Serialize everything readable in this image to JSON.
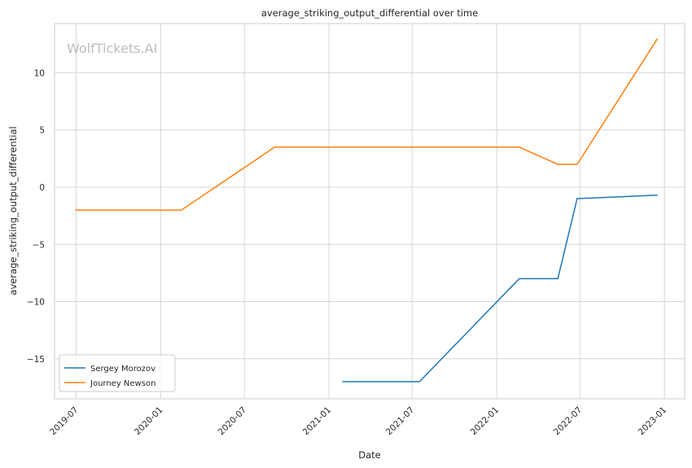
{
  "chart_data": {
    "type": "line",
    "title": "average_striking_output_differential over time",
    "xlabel": "Date",
    "ylabel": "average_striking_output_differential",
    "watermark": "WolfTickets.AI",
    "xlim": [
      "2019-05-15",
      "2023-02-14"
    ],
    "ylim": [
      -18.5,
      14.3
    ],
    "yticks": [
      -15,
      -10,
      -5,
      0,
      5,
      10
    ],
    "xticks": [
      "2019-07",
      "2020-01",
      "2020-07",
      "2021-01",
      "2021-07",
      "2022-01",
      "2022-07",
      "2023-01"
    ],
    "grid": true,
    "legend_position": "lower-left",
    "series": [
      {
        "name": "Sergey Morozov",
        "color": "#1f77b4",
        "points": [
          {
            "x": "2021-01-30",
            "y": -17.0
          },
          {
            "x": "2021-07-17",
            "y": -17.0
          },
          {
            "x": "2022-02-19",
            "y": -8.0
          },
          {
            "x": "2022-05-14",
            "y": -8.0
          },
          {
            "x": "2022-06-25",
            "y": -1.0
          },
          {
            "x": "2022-12-17",
            "y": -0.7
          }
        ]
      },
      {
        "name": "Journey Newson",
        "color": "#ff7f0e",
        "points": [
          {
            "x": "2019-06-29",
            "y": -2.0
          },
          {
            "x": "2020-02-15",
            "y": -2.0
          },
          {
            "x": "2020-09-05",
            "y": 3.5
          },
          {
            "x": "2022-02-19",
            "y": 3.5
          },
          {
            "x": "2022-05-14",
            "y": 2.0
          },
          {
            "x": "2022-06-25",
            "y": 2.0
          },
          {
            "x": "2022-12-17",
            "y": 13.0
          }
        ]
      }
    ]
  }
}
